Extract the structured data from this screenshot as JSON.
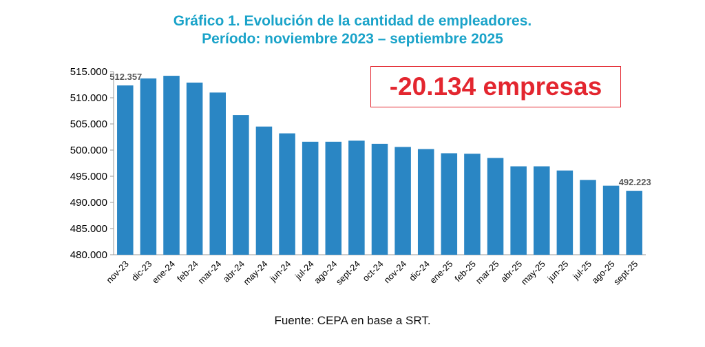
{
  "chart_data": {
    "type": "bar",
    "title": "Gráfico 1. Evolución de la cantidad de empleadores.",
    "subtitle": "Período: noviembre 2023 – septiembre 2025",
    "xlabel": "",
    "ylabel": "",
    "ylim": [
      480000,
      515000
    ],
    "yticks": [
      480000,
      485000,
      490000,
      495000,
      500000,
      505000,
      510000,
      515000
    ],
    "ytick_labels": [
      "480.000",
      "485.000",
      "490.000",
      "495.000",
      "500.000",
      "505.000",
      "510.000",
      "515.000"
    ],
    "categories": [
      "nov-23",
      "dic-23",
      "ene-24",
      "feb-24",
      "mar-24",
      "abr-24",
      "may-24",
      "jun-24",
      "jul-24",
      "ago-24",
      "sept-24",
      "oct-24",
      "nov-24",
      "dic-24",
      "ene-25",
      "feb-25",
      "mar-25",
      "abr-25",
      "may-25",
      "jun-25",
      "jul-25",
      "ago-25",
      "sept-25"
    ],
    "values": [
      512357,
      513700,
      514200,
      512900,
      511000,
      506700,
      504500,
      503200,
      501600,
      501600,
      501800,
      501200,
      500600,
      500200,
      499400,
      499300,
      498500,
      496900,
      496900,
      496100,
      494300,
      493200,
      492223
    ],
    "data_labels": [
      {
        "index": 0,
        "text": "512.357"
      },
      {
        "index": 22,
        "text": "492.223"
      }
    ],
    "bar_color": "#2a86c4",
    "grid": false,
    "legend": "none"
  },
  "annotation": {
    "text": "-20.134 empresas",
    "color": "#e3262f"
  },
  "source": "Fuente: CEPA en base a SRT.",
  "colors": {
    "title": "#1aa3c9",
    "axis": "#999999",
    "label": "#595959"
  }
}
